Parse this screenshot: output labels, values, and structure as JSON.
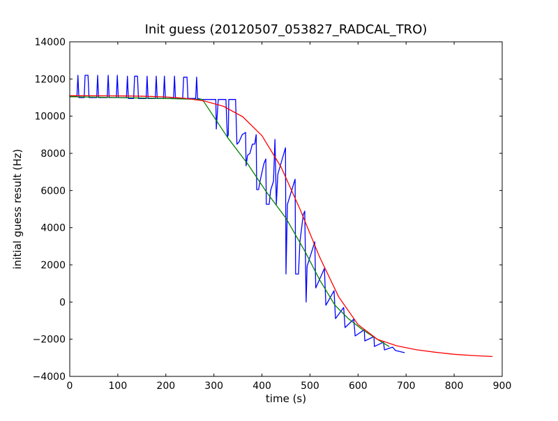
{
  "chart_data": {
    "type": "line",
    "title": "Init guess (20120507_053827_RADCAL_TRO)",
    "xlabel": "time (s)",
    "ylabel": "initial guess result (Hz)",
    "xlim": [
      0,
      900
    ],
    "ylim": [
      -4000,
      14000
    ],
    "xticks": [
      0,
      100,
      200,
      300,
      400,
      500,
      600,
      700,
      800,
      900
    ],
    "yticks": [
      -4000,
      -2000,
      0,
      2000,
      4000,
      6000,
      8000,
      10000,
      12000,
      14000
    ],
    "grid": false,
    "series": [
      {
        "name": "blue",
        "color": "#0000ff",
        "points": [
          [
            0,
            11050
          ],
          [
            15,
            11050
          ],
          [
            17,
            12200
          ],
          [
            19,
            11000
          ],
          [
            30,
            11000
          ],
          [
            32,
            12200
          ],
          [
            38,
            12200
          ],
          [
            40,
            11000
          ],
          [
            56,
            11000
          ],
          [
            58,
            12200
          ],
          [
            60,
            11000
          ],
          [
            78,
            11000
          ],
          [
            80,
            12200
          ],
          [
            82,
            11000
          ],
          [
            97,
            11000
          ],
          [
            99,
            12200
          ],
          [
            101,
            11000
          ],
          [
            118,
            11000
          ],
          [
            120,
            12150
          ],
          [
            122,
            10950
          ],
          [
            133,
            10950
          ],
          [
            135,
            12150
          ],
          [
            141,
            12150
          ],
          [
            143,
            10950
          ],
          [
            159,
            10950
          ],
          [
            161,
            12150
          ],
          [
            163,
            10950
          ],
          [
            178,
            10950
          ],
          [
            180,
            12150
          ],
          [
            182,
            10950
          ],
          [
            195,
            10950
          ],
          [
            197,
            12150
          ],
          [
            199,
            10950
          ],
          [
            216,
            10950
          ],
          [
            218,
            12150
          ],
          [
            220,
            10950
          ],
          [
            235,
            10950
          ],
          [
            237,
            12100
          ],
          [
            244,
            12100
          ],
          [
            246,
            10950
          ],
          [
            262,
            10950
          ],
          [
            264,
            12100
          ],
          [
            266,
            10950
          ],
          [
            276,
            10900
          ],
          [
            304,
            10900
          ],
          [
            305,
            9310
          ],
          [
            309,
            10900
          ],
          [
            325,
            10900
          ],
          [
            328,
            8860
          ],
          [
            330,
            9000
          ],
          [
            331,
            10900
          ],
          [
            345,
            10900
          ],
          [
            348,
            8490
          ],
          [
            352,
            8600
          ],
          [
            359,
            9010
          ],
          [
            366,
            9125
          ],
          [
            367,
            7330
          ],
          [
            370,
            7890
          ],
          [
            375,
            8000
          ],
          [
            380,
            8490
          ],
          [
            385,
            8500
          ],
          [
            388,
            9010
          ],
          [
            389,
            6050
          ],
          [
            393,
            6050
          ],
          [
            396,
            6500
          ],
          [
            404,
            7440
          ],
          [
            408,
            7700
          ],
          [
            409,
            5260
          ],
          [
            415,
            5260
          ],
          [
            418,
            6010
          ],
          [
            424,
            6500
          ],
          [
            427,
            8750
          ],
          [
            430,
            5260
          ],
          [
            433,
            6875
          ],
          [
            449,
            8300
          ],
          [
            450,
            1510
          ],
          [
            453,
            5260
          ],
          [
            469,
            6610
          ],
          [
            470,
            1510
          ],
          [
            476,
            1510
          ],
          [
            479,
            3240
          ],
          [
            486,
            4700
          ],
          [
            489,
            4890
          ],
          [
            492,
            0
          ],
          [
            494,
            1925
          ],
          [
            510,
            3240
          ],
          [
            512,
            760
          ],
          [
            530,
            1810
          ],
          [
            533,
            -175
          ],
          [
            550,
            610
          ],
          [
            553,
            -890
          ],
          [
            570,
            -290
          ],
          [
            573,
            -1375
          ],
          [
            591,
            -925
          ],
          [
            594,
            -1825
          ],
          [
            613,
            -1490
          ],
          [
            614,
            -2090
          ],
          [
            633,
            -1860
          ],
          [
            634,
            -2390
          ],
          [
            653,
            -2160
          ],
          [
            655,
            -2575
          ],
          [
            672,
            -2425
          ],
          [
            678,
            -2610
          ],
          [
            697,
            -2725
          ]
        ]
      },
      {
        "name": "green",
        "color": "#008000",
        "points": [
          [
            0,
            11050
          ],
          [
            100,
            11000
          ],
          [
            200,
            10950
          ],
          [
            276,
            10900
          ],
          [
            330,
            8800
          ],
          [
            370,
            7440
          ],
          [
            410,
            5900
          ],
          [
            450,
            4510
          ],
          [
            490,
            2700
          ],
          [
            520,
            1200
          ],
          [
            552,
            -175
          ],
          [
            580,
            -900
          ],
          [
            610,
            -1500
          ],
          [
            640,
            -2000
          ],
          [
            665,
            -2400
          ]
        ]
      },
      {
        "name": "red",
        "color": "#ff0000",
        "points": [
          [
            0,
            11100
          ],
          [
            40,
            11096
          ],
          [
            80,
            11092
          ],
          [
            120,
            11085
          ],
          [
            160,
            11068
          ],
          [
            200,
            11033
          ],
          [
            240,
            10962
          ],
          [
            280,
            10818
          ],
          [
            320,
            10530
          ],
          [
            360,
            9969
          ],
          [
            400,
            8950
          ],
          [
            440,
            7255
          ],
          [
            480,
            4944
          ],
          [
            520,
            2423
          ],
          [
            560,
            264
          ],
          [
            600,
            -1209
          ],
          [
            640,
            -2000
          ],
          [
            680,
            -2350
          ],
          [
            720,
            -2560
          ],
          [
            760,
            -2700
          ],
          [
            800,
            -2810
          ],
          [
            840,
            -2880
          ],
          [
            880,
            -2930
          ]
        ]
      }
    ]
  }
}
